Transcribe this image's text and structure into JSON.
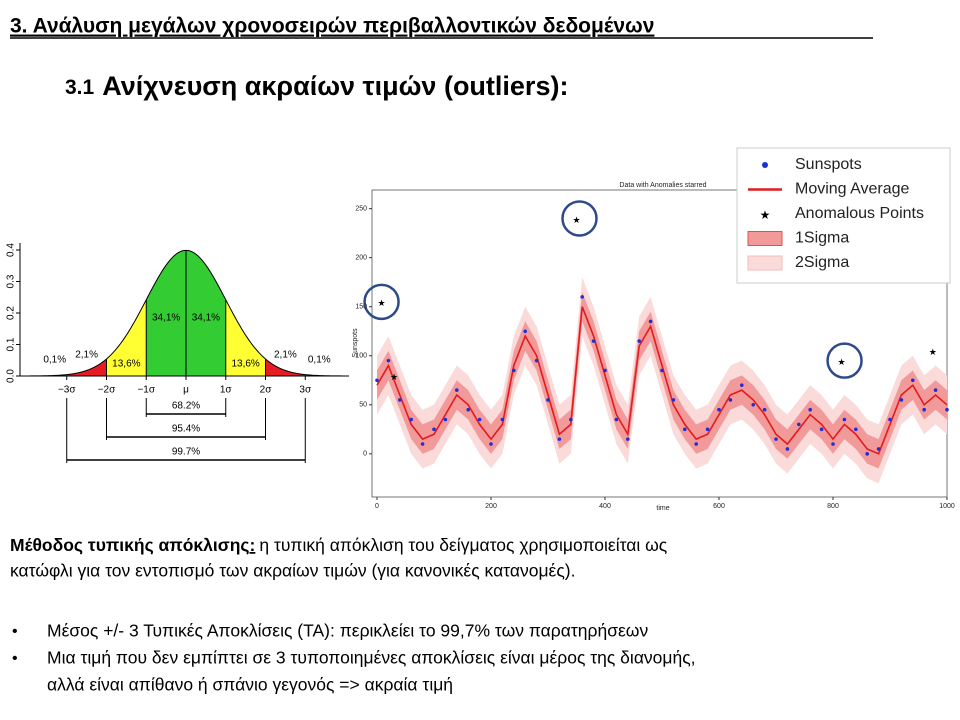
{
  "header": {
    "title": "3. Ανάλυση μεγάλων χρονοσειρών περιβαλλοντικών δεδομένων",
    "number": "3.1",
    "subtitle": "Ανίχνευση ακραίων τιμών (outliers):"
  },
  "chart_data": [
    {
      "type": "normal",
      "xticks": [
        {
          "value": -3,
          "label": "−3σ"
        },
        {
          "value": -2,
          "label": "−2σ"
        },
        {
          "value": -1,
          "label": "−1σ"
        },
        {
          "value": 0,
          "label": "μ"
        },
        {
          "value": 1,
          "label": "1σ"
        },
        {
          "value": 2,
          "label": "2σ"
        },
        {
          "value": 3,
          "label": "3σ"
        }
      ],
      "xlim": [
        -4.1,
        4.1
      ],
      "ylim": [
        0,
        0.4
      ],
      "yticks": [
        {
          "value": 0,
          "label": "0.0"
        },
        0.1,
        0.2,
        0.3,
        0.4
      ],
      "values": [
        0.1,
        2.1,
        13.6,
        34.1,
        34.1,
        13.6,
        2.1,
        0.1
      ],
      "value_labels": [
        "0,1%",
        "2,1%",
        "13,6%",
        "34,1%",
        "34,1%",
        "13,6%",
        "2,1%",
        "0,1%"
      ],
      "colors": [
        "#e51c23",
        "#e51c23",
        "#ffff33",
        "#33cc33",
        "#33cc33",
        "#ffff33",
        "#e51c23",
        "#e51c23"
      ],
      "intervals": [
        68.2,
        95.4,
        99.7
      ],
      "interval_labels": [
        "68.2%",
        "95.4%",
        "99.7%"
      ]
    },
    {
      "type": "line",
      "title": "Data with Anomalies starred",
      "xlabel": "time",
      "ylabel": "Sunspots",
      "xlim": [
        0,
        1000
      ],
      "xticks": [
        0,
        200,
        400,
        600,
        800,
        1000
      ],
      "ylim": [
        -44,
        269
      ],
      "yticks": [
        0,
        50,
        100,
        150,
        200,
        250
      ],
      "x": [
        0,
        20,
        40,
        60,
        80,
        100,
        120,
        140,
        160,
        180,
        200,
        220,
        240,
        260,
        280,
        300,
        320,
        340,
        360,
        380,
        400,
        420,
        440,
        460,
        480,
        500,
        520,
        540,
        560,
        580,
        600,
        620,
        640,
        660,
        680,
        700,
        720,
        740,
        760,
        780,
        800,
        820,
        840,
        860,
        880,
        900,
        920,
        940,
        960,
        980,
        1000
      ],
      "series": [
        {
          "name": "Sunspots",
          "color": "#1f2fd6",
          "values": [
            75,
            95,
            55,
            35,
            10,
            25,
            35,
            65,
            45,
            35,
            10,
            35,
            85,
            125,
            95,
            55,
            15,
            35,
            160,
            115,
            85,
            35,
            15,
            115,
            135,
            85,
            55,
            25,
            10,
            25,
            45,
            55,
            70,
            50,
            45,
            15,
            5,
            30,
            45,
            25,
            10,
            35,
            25,
            0,
            5,
            35,
            55,
            75,
            45,
            65,
            45
          ]
        },
        {
          "name": "Moving Average",
          "color": "#e41a1c",
          "values": [
            70,
            90,
            60,
            30,
            15,
            20,
            40,
            60,
            50,
            30,
            15,
            30,
            90,
            120,
            100,
            60,
            20,
            30,
            150,
            120,
            80,
            40,
            20,
            110,
            130,
            90,
            50,
            30,
            15,
            20,
            40,
            60,
            65,
            55,
            40,
            20,
            10,
            25,
            40,
            30,
            15,
            30,
            20,
            5,
            0,
            30,
            60,
            70,
            50,
            60,
            50
          ]
        },
        {
          "name": "Anomalous Points",
          "color": "#e41a1c",
          "x": [
            8,
            350,
            815,
            975,
            30
          ],
          "values": [
            155,
            240,
            95,
            105,
            80
          ]
        },
        {
          "name": "1Sigma",
          "color": "#f29a9a",
          "width": 15
        },
        {
          "name": "2Sigma",
          "color": "#fbdada",
          "width": 30
        }
      ]
    }
  ],
  "body": {
    "bold": "Μέθοδος τυπικής απόκλισης",
    "colon": ":",
    "line1": "η τυπική απόκλιση του δείγματος χρησιμοποιείται ως",
    "line2": "κατώφλι για τον εντοπισμό των ακραίων τιμών (για κανονικές κατανομές).",
    "bullets": [
      [
        "Μέσος +/- 3 Τυπικές Αποκλίσεις (ΤΑ): περικλείει το 99,7% των παρατηρήσεων"
      ],
      [
        "Μια τιμή που δεν εμπίπτει σε 3 τυποποιημένες αποκλίσεις είναι μέρος της διανομής,",
        "αλλά είναι απίθανο ή σπάνιο γεγονός => ακραία τιμή"
      ]
    ]
  }
}
